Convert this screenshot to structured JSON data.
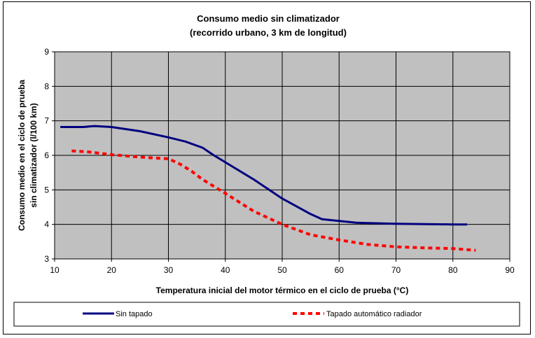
{
  "chart_data": {
    "type": "line",
    "title": "Consumo medio sin climatizador",
    "subtitle": "(recorrido urbano, 3 km de longitud)",
    "xlabel": "Temperatura inicial del motor térmico en el ciclo de prueba (°C)",
    "ylabel_line1": "Consumo medio en el ciclo de prueba",
    "ylabel_line2": "sin climatizador (l/100 km)",
    "xlim": [
      10,
      90
    ],
    "ylim": [
      3,
      9
    ],
    "xticks": [
      10,
      20,
      30,
      40,
      50,
      60,
      70,
      80,
      90
    ],
    "yticks": [
      3,
      4,
      5,
      6,
      7,
      8,
      9
    ],
    "grid": true,
    "plot_background": "#c0c0c0",
    "legend_position": "bottom",
    "series": [
      {
        "name": "Sin tapado",
        "color": "#000080",
        "style": "solid",
        "x": [
          11,
          15,
          17,
          20,
          25,
          30,
          33,
          36,
          38,
          40,
          45,
          50,
          55,
          57,
          60,
          63,
          65,
          70,
          75,
          80,
          82.5
        ],
        "y": [
          6.82,
          6.82,
          6.85,
          6.82,
          6.7,
          6.52,
          6.4,
          6.22,
          6.0,
          5.8,
          5.3,
          4.75,
          4.3,
          4.15,
          4.1,
          4.05,
          4.04,
          4.02,
          4.01,
          4.0,
          4.0
        ]
      },
      {
        "name": "Tapado automático radiador",
        "color": "#ff0000",
        "style": "dashed",
        "x": [
          13,
          16,
          20,
          25,
          30,
          32,
          34,
          36,
          38,
          40,
          45,
          50,
          55,
          60,
          65,
          70,
          75,
          80,
          84
        ],
        "y": [
          6.13,
          6.1,
          6.02,
          5.95,
          5.9,
          5.75,
          5.55,
          5.3,
          5.1,
          4.9,
          4.38,
          4.0,
          3.7,
          3.55,
          3.42,
          3.35,
          3.32,
          3.3,
          3.25
        ]
      }
    ]
  }
}
